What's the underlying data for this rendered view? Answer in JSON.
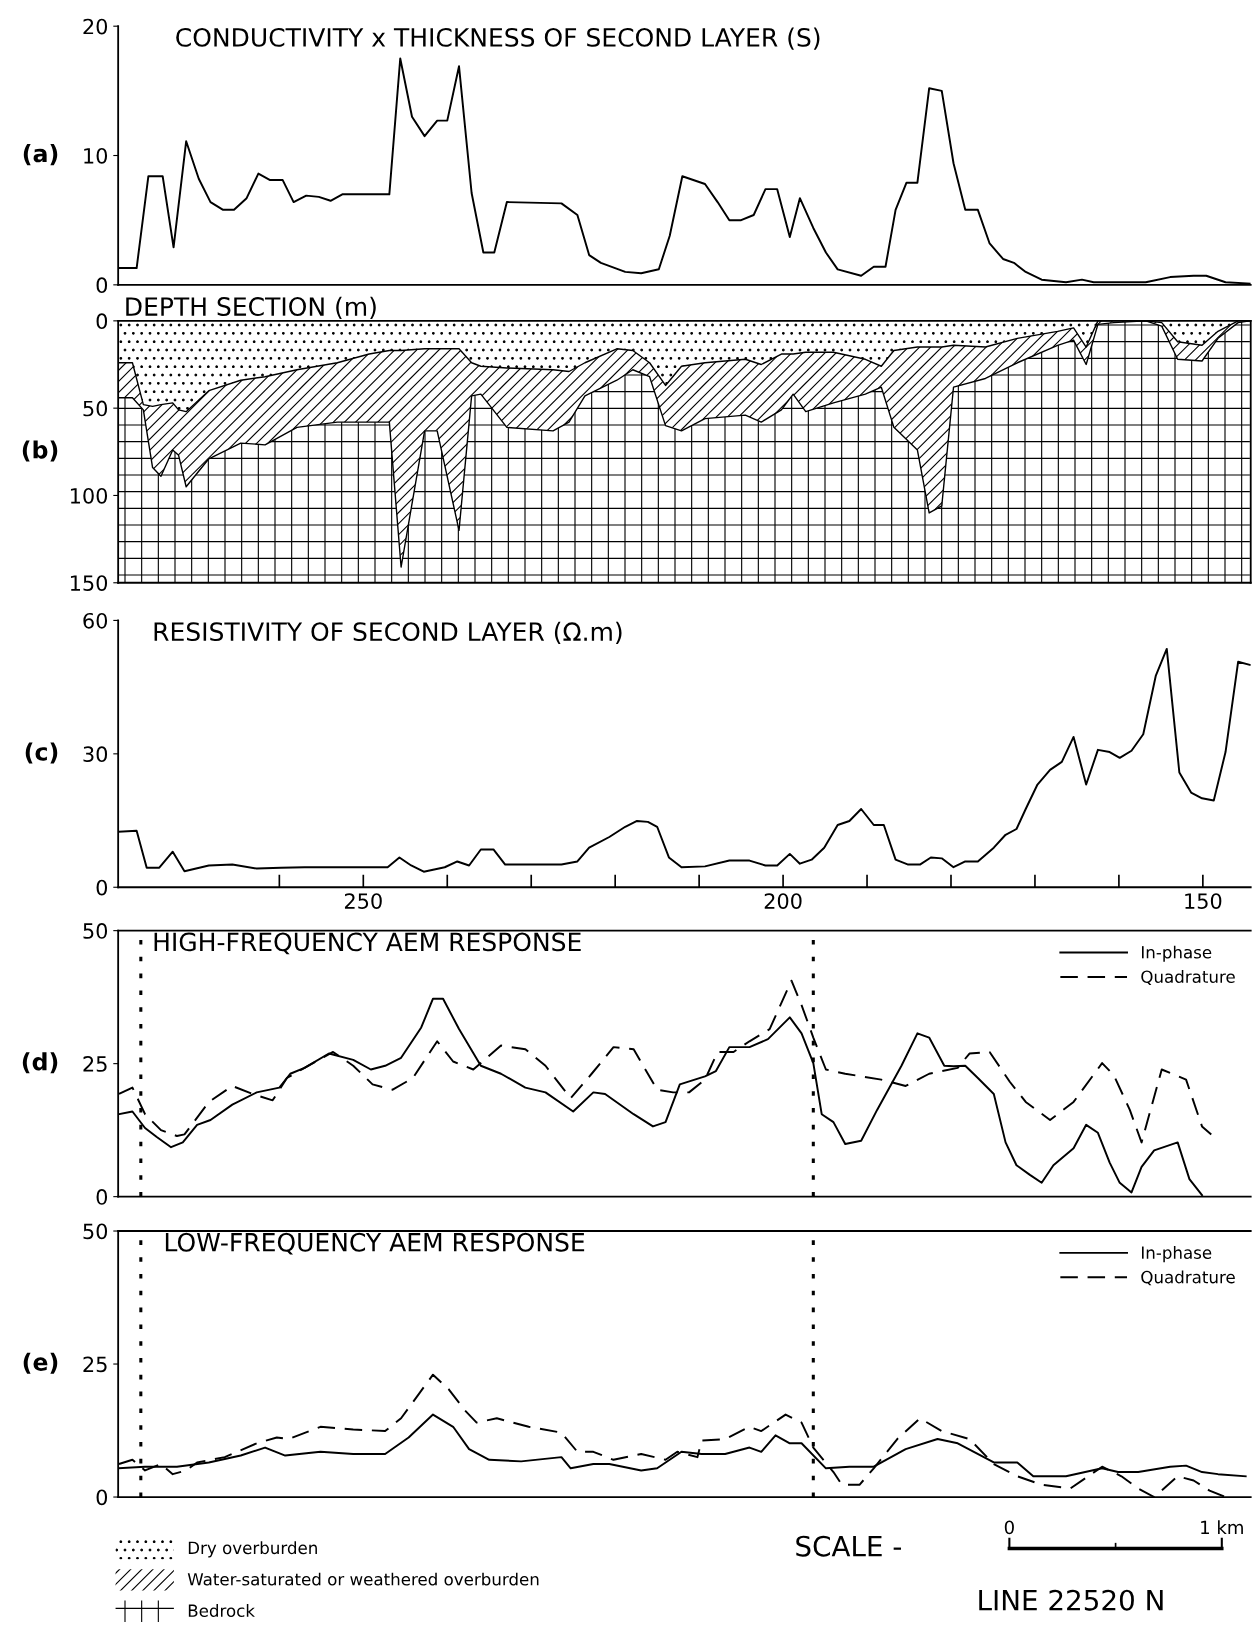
{
  "chart_data": [
    {
      "type": "line",
      "title": "CONDUCTIVITY x THICKNESS OF SECOND LAYER (S)",
      "annotations": [
        "(a)"
      ],
      "xlim": [
        279.2,
        144.3
      ],
      "ylim": [
        0,
        20
      ],
      "yticks": [
        0,
        10,
        20
      ],
      "tick_labels": "y",
      "series": [
        {
          "color": "#000000",
          "line_style": "solid",
          "x": [
            279.1,
            277.0,
            275.6,
            273.9,
            272.6,
            271.1,
            269.6,
            268.2,
            266.7,
            265.4,
            263.9,
            262.5,
            261.1,
            259.6,
            258.3,
            256.8,
            255.3,
            253.9,
            252.5,
            251.0,
            246.9,
            245.6,
            244.2,
            242.7,
            241.2,
            240.0,
            238.6,
            237.1,
            235.7,
            234.4,
            232.9,
            226.4,
            224.5,
            223.1,
            221.7,
            218.8,
            216.9,
            214.8,
            213.5,
            212.0,
            209.3,
            207.8,
            206.4,
            205.0,
            203.5,
            202.1,
            200.7,
            199.2,
            198.0,
            196.4,
            194.9,
            193.5,
            190.7,
            189.2,
            187.8,
            186.6,
            185.3,
            184.0,
            182.6,
            181.1,
            179.7,
            178.3,
            176.8,
            175.4,
            173.8,
            172.5,
            171.1,
            169.2,
            166.3,
            164.4,
            163.0,
            156.8,
            153.9,
            151.1,
            149.6,
            147.3,
            144.4
          ],
          "values": [
            1.3,
            1.3,
            8.4,
            8.4,
            2.9,
            11.1,
            8.2,
            6.4,
            5.8,
            5.8,
            6.7,
            8.6,
            8.1,
            8.1,
            6.4,
            6.9,
            6.8,
            6.5,
            7.0,
            7.0,
            7.0,
            17.5,
            13.0,
            11.5,
            12.7,
            12.7,
            16.9,
            7.1,
            2.5,
            2.5,
            6.4,
            6.3,
            5.4,
            2.3,
            1.7,
            1.0,
            0.9,
            1.2,
            3.8,
            8.4,
            7.8,
            6.4,
            5.0,
            5.0,
            5.4,
            7.4,
            7.4,
            3.7,
            6.7,
            4.4,
            2.5,
            1.2,
            0.7,
            1.4,
            1.4,
            5.8,
            7.9,
            7.9,
            15.2,
            15.0,
            9.4,
            5.8,
            5.8,
            3.2,
            2.0,
            1.7,
            1.0,
            0.4,
            0.2,
            0.4,
            0.2,
            0.2,
            0.6,
            0.7,
            0.7,
            0.2,
            0.1
          ]
        }
      ]
    },
    {
      "type": "area",
      "stacked": true,
      "title": "DEPTH SECTION (m)",
      "annotations": [
        "(b)"
      ],
      "xlim": [
        279.2,
        144.3
      ],
      "ylim": [
        150,
        0
      ],
      "yticks": [
        0,
        50,
        100,
        150
      ],
      "tick_labels": "y",
      "legend": "bottom",
      "x": [
        279.1,
        277.5,
        276.2,
        275.1,
        274.1,
        272.7,
        272.0,
        271.1,
        268.4,
        264.6,
        261.7,
        257.9,
        253.1,
        249.3,
        246.9,
        245.5,
        242.7,
        241.2,
        238.6,
        237.1,
        236.0,
        232.9,
        227.4,
        225.5,
        223.6,
        219.8,
        217.9,
        215.9,
        214.0,
        212.1,
        209.3,
        204.5,
        202.6,
        200.2,
        198.8,
        197.3,
        194.0,
        190.2,
        188.3,
        186.8,
        184.0,
        182.6,
        181.1,
        179.7,
        175.9,
        172.1,
        167.3,
        165.4,
        163.9,
        162.5,
        160.6,
        156.8,
        154.9,
        153.0,
        150.1,
        148.2,
        145.8,
        144.4
      ],
      "series": [
        {
          "name": "Dry overburden",
          "color": "#000000",
          "values": [
            24,
            24,
            48,
            49,
            48,
            47,
            51,
            52,
            40,
            34,
            32,
            28,
            24,
            19,
            17,
            17,
            16,
            16,
            16,
            24,
            26,
            27,
            28,
            29,
            24,
            16,
            17,
            24,
            37,
            26,
            24,
            22,
            25,
            19,
            19,
            18,
            18,
            22,
            26,
            17,
            15,
            15,
            15,
            14,
            15,
            10,
            6,
            4,
            15,
            0,
            0,
            0,
            1,
            12,
            14,
            6,
            0,
            0
          ]
        },
        {
          "name": "Water-saturated or weathered overburden",
          "color": "#000000",
          "values": [
            20,
            20,
            3,
            35,
            41,
            27,
            26,
            43,
            39,
            36,
            39,
            33,
            34,
            39,
            41,
            124,
            47,
            47,
            104,
            19,
            16,
            34,
            35,
            29,
            19,
            18,
            11,
            8,
            23,
            37,
            32,
            32,
            33,
            32,
            23,
            34,
            29,
            20,
            12,
            44,
            59,
            95,
            91,
            24,
            18,
            14,
            8,
            7,
            10,
            2,
            1,
            0,
            2,
            10,
            9,
            4,
            1,
            0
          ]
        },
        {
          "name": "Bedrock",
          "color": "#000000",
          "values": [
            106,
            106,
            99,
            66,
            61,
            76,
            73,
            55,
            71,
            80,
            79,
            89,
            92,
            92,
            92,
            9,
            87,
            87,
            30,
            107,
            108,
            89,
            87,
            92,
            107,
            116,
            122,
            118,
            90,
            87,
            94,
            96,
            92,
            99,
            108,
            98,
            103,
            108,
            112,
            89,
            76,
            40,
            44,
            112,
            117,
            126,
            136,
            139,
            125,
            148,
            149,
            150,
            147,
            128,
            127,
            140,
            149,
            150
          ]
        }
      ]
    },
    {
      "type": "line",
      "title": "RESISTIVITY OF SECOND LAYER (Ω.m)",
      "annotations": [
        "(c)"
      ],
      "xlim": [
        279.2,
        144.3
      ],
      "ylim": [
        0,
        60
      ],
      "yticks": [
        0,
        30,
        60
      ],
      "xticks": [
        {
          "value": 260,
          "label": null
        },
        250,
        {
          "value": 240,
          "label": null
        },
        {
          "value": 230,
          "label": null
        },
        {
          "value": 220,
          "label": null
        },
        {
          "value": 210,
          "label": null
        },
        200,
        {
          "value": 190,
          "label": null
        },
        {
          "value": 180,
          "label": null
        },
        {
          "value": 170,
          "label": null
        },
        {
          "value": 160,
          "label": null
        },
        150
      ],
      "series": [
        {
          "color": "#000000",
          "line_style": "solid",
          "x": [
            279.1,
            277.0,
            275.8,
            274.3,
            272.7,
            271.3,
            268.4,
            265.6,
            262.7,
            259.8,
            257.0,
            253.1,
            247.1,
            245.7,
            244.3,
            242.8,
            240.3,
            238.8,
            237.4,
            236.0,
            234.5,
            233.1,
            226.4,
            224.5,
            223.1,
            220.7,
            218.8,
            217.4,
            216.1,
            215.0,
            213.6,
            212.1,
            209.3,
            206.4,
            204.0,
            202.1,
            200.7,
            199.2,
            198.0,
            196.6,
            195.1,
            193.5,
            192.1,
            190.7,
            189.2,
            188.0,
            186.6,
            185.1,
            183.7,
            182.4,
            181.1,
            179.7,
            178.3,
            176.8,
            174.9,
            173.5,
            172.2,
            171.1,
            169.7,
            168.2,
            166.8,
            165.4,
            163.9,
            162.5,
            161.1,
            159.9,
            158.5,
            157.1,
            155.6,
            154.3,
            152.8,
            151.4,
            150.1,
            148.7,
            147.3,
            145.8,
            144.4
          ],
          "values": [
            12.5,
            12.7,
            4.4,
            4.4,
            8.0,
            3.6,
            4.9,
            5.1,
            4.2,
            4.4,
            4.5,
            4.5,
            4.5,
            6.7,
            4.9,
            3.5,
            4.5,
            5.8,
            4.9,
            8.5,
            8.5,
            5.1,
            5.1,
            5.8,
            8.9,
            11.3,
            13.6,
            14.9,
            14.7,
            13.6,
            6.7,
            4.5,
            4.7,
            6.0,
            6.0,
            4.9,
            4.9,
            7.5,
            5.3,
            6.2,
            8.9,
            14.0,
            14.9,
            17.6,
            14.0,
            14.0,
            6.2,
            5.1,
            5.1,
            6.7,
            6.5,
            4.5,
            5.8,
            5.8,
            8.9,
            11.8,
            13.1,
            17.6,
            23.1,
            26.4,
            28.2,
            33.8,
            23.1,
            30.9,
            30.4,
            29.1,
            30.7,
            34.4,
            47.6,
            53.6,
            25.8,
            21.3,
            20.0,
            19.5,
            30.4,
            50.7,
            50.0
          ]
        }
      ]
    },
    {
      "type": "line",
      "title": "HIGH-FREQUENCY AEM RESPONSE",
      "annotations": [
        "(d)"
      ],
      "xlim": [
        279.2,
        144.3
      ],
      "ylim": [
        0,
        50
      ],
      "yticks": [
        0,
        25,
        50
      ],
      "tick_labels": "y",
      "legend": "top right",
      "ref_lines": [
        {
          "axis": "x",
          "value": 276.5,
          "line_style": "dotted"
        },
        {
          "axis": "x",
          "value": 196.4,
          "line_style": "dotted"
        }
      ],
      "series": [
        {
          "name": "In-phase",
          "color": "#000000",
          "line_style": "solid",
          "x": [
            279.1,
            277.5,
            276.0,
            274.6,
            272.9,
            271.5,
            269.8,
            268.2,
            265.6,
            262.7,
            260.0,
            258.7,
            257.0,
            254.1,
            251.2,
            249.1,
            247.4,
            245.5,
            243.1,
            241.7,
            240.5,
            238.6,
            236.0,
            233.6,
            230.7,
            228.3,
            225.0,
            222.6,
            221.2,
            217.8,
            215.5,
            214.0,
            212.3,
            209.3,
            208.0,
            206.4,
            204.0,
            201.8,
            199.2,
            197.8,
            196.4,
            195.4,
            194.0,
            192.6,
            190.7,
            188.8,
            185.9,
            184.0,
            182.6,
            180.8,
            179.7,
            178.3,
            176.8,
            174.9,
            173.5,
            172.2,
            170.6,
            169.2,
            167.8,
            165.4,
            163.9,
            162.5,
            161.1,
            159.9,
            158.5,
            157.3,
            155.8,
            153.0,
            151.6,
            150.1
          ],
          "values": [
            15.5,
            16.0,
            12.9,
            11.2,
            9.3,
            10.2,
            13.5,
            14.4,
            17.3,
            19.6,
            20.5,
            23.1,
            24.2,
            26.9,
            25.7,
            23.9,
            24.6,
            26.1,
            31.8,
            37.2,
            37.2,
            31.5,
            24.6,
            23.1,
            20.5,
            19.6,
            16.0,
            19.6,
            19.3,
            15.5,
            13.2,
            14.0,
            21.1,
            22.6,
            23.6,
            28.1,
            28.1,
            29.6,
            33.7,
            30.7,
            25.1,
            15.5,
            14.0,
            9.9,
            10.5,
            16.3,
            24.6,
            30.7,
            29.9,
            24.6,
            24.5,
            24.6,
            22.3,
            19.3,
            10.2,
            5.9,
            4.1,
            2.6,
            5.9,
            9.1,
            13.5,
            12.0,
            6.4,
            2.6,
            0.8,
            5.6,
            8.7,
            10.2,
            3.3,
            0.3
          ]
        },
        {
          "name": "Quadrature",
          "color": "#000000",
          "line_style": "dashed",
          "x": [
            279.1,
            277.5,
            276.0,
            274.1,
            272.2,
            271.3,
            268.4,
            265.6,
            263.2,
            260.8,
            259.1,
            257.0,
            253.6,
            251.2,
            248.9,
            246.5,
            244.1,
            241.2,
            239.3,
            236.9,
            233.6,
            230.7,
            228.3,
            225.3,
            222.8,
            220.2,
            217.8,
            215.0,
            213.1,
            211.2,
            209.3,
            207.8,
            205.9,
            204.0,
            201.6,
            199.0,
            197.8,
            196.4,
            194.9,
            192.6,
            188.3,
            185.4,
            182.6,
            179.2,
            177.8,
            175.4,
            173.0,
            171.1,
            168.2,
            165.4,
            162.0,
            160.6,
            158.7,
            157.3,
            154.9,
            152.0,
            150.1,
            149.0
          ],
          "values": [
            19.3,
            20.5,
            15.5,
            12.5,
            11.4,
            11.7,
            17.8,
            20.8,
            19.3,
            18.1,
            22.3,
            24.2,
            27.2,
            24.6,
            21.1,
            20.1,
            22.3,
            29.2,
            25.4,
            23.9,
            28.4,
            27.7,
            24.6,
            18.5,
            23.1,
            28.1,
            27.7,
            20.1,
            19.6,
            19.6,
            22.0,
            27.2,
            27.2,
            29.2,
            31.5,
            40.6,
            36.0,
            29.9,
            23.9,
            23.1,
            22.0,
            20.8,
            23.1,
            24.2,
            26.9,
            27.2,
            21.6,
            17.8,
            14.4,
            17.8,
            25.1,
            22.8,
            16.3,
            10.2,
            23.9,
            22.0,
            13.2,
            11.7
          ]
        }
      ]
    },
    {
      "type": "line",
      "title": "LOW-FREQUENCY AEM RESPONSE",
      "annotations": [
        "(e)",
        "SCALE -",
        "0",
        "1 km",
        "LINE 22520 N"
      ],
      "xlim": [
        279.2,
        144.3
      ],
      "ylim": [
        0,
        50
      ],
      "yticks": [
        0,
        25,
        50
      ],
      "tick_labels": "y",
      "legend": "top right",
      "ref_lines": [
        {
          "axis": "x",
          "value": 276.5,
          "line_style": "dotted"
        },
        {
          "axis": "x",
          "value": 196.4,
          "line_style": "dotted"
        }
      ],
      "series": [
        {
          "name": "In-phase",
          "color": "#000000",
          "line_style": "solid",
          "x": [
            279.1,
            276.0,
            272.2,
            268.4,
            264.6,
            261.7,
            259.3,
            255.1,
            251.2,
            247.4,
            244.6,
            241.7,
            239.3,
            237.4,
            235.0,
            231.2,
            226.4,
            225.3,
            222.6,
            220.7,
            216.9,
            215.0,
            212.1,
            209.7,
            206.9,
            204.0,
            202.6,
            200.9,
            199.2,
            197.8,
            194.9,
            192.1,
            189.2,
            185.4,
            181.6,
            179.2,
            174.9,
            172.1,
            170.2,
            166.3,
            162.0,
            160.1,
            157.7,
            153.9,
            152.0,
            150.1,
            148.2,
            144.9
          ],
          "values": [
            5.4,
            5.7,
            5.7,
            6.5,
            7.8,
            9.3,
            7.8,
            8.5,
            8.1,
            8.1,
            11.2,
            15.5,
            13.2,
            9.0,
            7.0,
            6.7,
            7.5,
            5.4,
            6.2,
            6.2,
            5.0,
            5.4,
            8.5,
            8.1,
            8.1,
            9.3,
            8.5,
            11.6,
            10.1,
            10.1,
            5.4,
            5.7,
            5.7,
            9.0,
            10.9,
            10.1,
            6.5,
            6.5,
            3.9,
            3.9,
            5.4,
            4.7,
            4.7,
            5.7,
            5.9,
            4.7,
            4.3,
            3.9
          ]
        },
        {
          "name": "Quadrature",
          "color": "#000000",
          "line_style": "dashed",
          "x": [
            279.1,
            277.5,
            276.0,
            274.1,
            272.7,
            271.1,
            269.8,
            266.5,
            262.7,
            260.3,
            258.9,
            255.1,
            251.2,
            247.4,
            245.5,
            241.7,
            239.8,
            237.9,
            236.5,
            234.1,
            230.3,
            226.4,
            224.5,
            222.6,
            220.2,
            216.9,
            214.0,
            212.6,
            210.2,
            209.7,
            206.9,
            204.0,
            202.6,
            199.7,
            197.8,
            196.4,
            194.0,
            193.0,
            190.9,
            189.2,
            186.4,
            183.7,
            181.1,
            177.8,
            174.9,
            172.1,
            169.2,
            165.8,
            162.0,
            159.7,
            157.7,
            155.8,
            153.0,
            151.1,
            149.2,
            147.3
          ],
          "values": [
            6.2,
            7.0,
            5.0,
            6.2,
            4.3,
            5.0,
            6.5,
            7.5,
            10.1,
            11.2,
            10.9,
            13.2,
            12.7,
            12.4,
            14.8,
            23.0,
            20.2,
            16.3,
            14.0,
            14.8,
            13.2,
            12.1,
            8.5,
            8.5,
            7.0,
            8.1,
            7.0,
            8.5,
            7.5,
            10.6,
            10.9,
            13.2,
            12.4,
            15.5,
            14.0,
            9.3,
            4.7,
            2.3,
            2.3,
            5.4,
            10.9,
            14.8,
            12.4,
            10.9,
            6.2,
            3.9,
            2.3,
            1.6,
            5.7,
            3.9,
            1.6,
            0,
            3.9,
            3.1,
            1.2,
            0
          ]
        }
      ]
    }
  ]
}
